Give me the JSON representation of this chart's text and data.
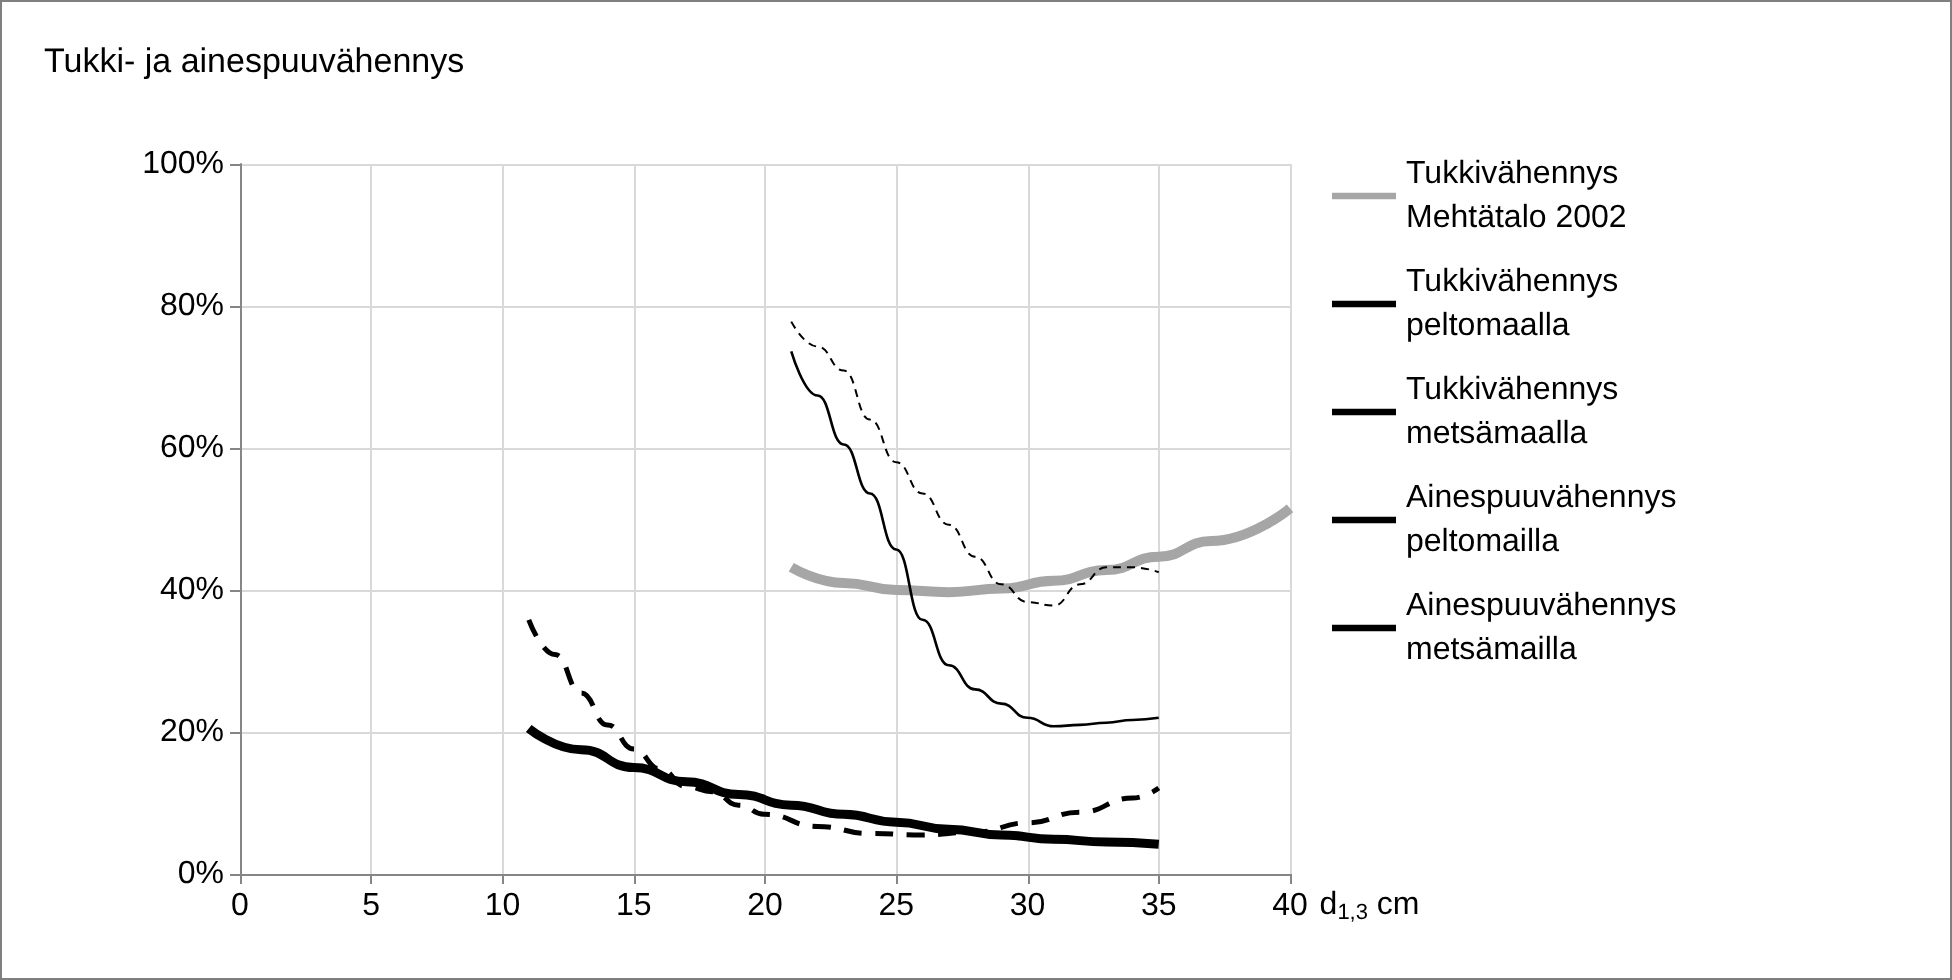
{
  "chart_data": {
    "type": "line",
    "title": "Tukki- ja ainespuuvähennys",
    "xlabel": "d$_{1,3}$ cm",
    "xlim": [
      0,
      40
    ],
    "xticks": [
      0,
      5,
      10,
      15,
      20,
      25,
      30,
      35,
      40
    ],
    "ylim": [
      0,
      100
    ],
    "yticks": [
      {
        "value": 0,
        "label": "0%"
      },
      {
        "value": 20,
        "label": "20%"
      },
      {
        "value": 40,
        "label": "40%"
      },
      {
        "value": 60,
        "label": "60%"
      },
      {
        "value": 80,
        "label": "80%"
      },
      {
        "value": 100,
        "label": "100%"
      }
    ],
    "grid": true,
    "legend": "right",
    "marker": "none",
    "series": [
      {
        "name": "Tukkivähennys Mehtätalo 2002",
        "color": "#a6a6a6",
        "line_style": "solid",
        "x": [
          21,
          23,
          25,
          27,
          29,
          31,
          33,
          35,
          37,
          40
        ],
        "values": [
          43.2,
          41.0,
          40.0,
          39.7,
          40.2,
          41.3,
          42.8,
          44.7,
          46.9,
          51.5
        ]
      },
      {
        "name": "Tukkivähennys peltomaalla",
        "color": "#000000",
        "line_style": "dashed",
        "x": [
          21,
          22,
          23,
          24,
          25,
          26,
          27,
          28,
          29,
          30,
          31,
          32,
          33,
          34,
          35
        ],
        "values": [
          77.8,
          74.3,
          70.9,
          64,
          58,
          53.6,
          49.2,
          44.7,
          40.8,
          38.3,
          37.8,
          40.8,
          43.2,
          43.2,
          42.5
        ]
      },
      {
        "name": "Tukkivähennys metsämaalla",
        "color": "#000000",
        "line_style": "solid",
        "x": [
          21,
          22,
          23,
          24,
          25,
          26,
          27,
          28,
          29,
          30,
          31,
          32,
          33,
          34,
          35
        ],
        "values": [
          73.6,
          67.4,
          60.5,
          53.6,
          45.7,
          35.8,
          29.4,
          26,
          24,
          22,
          20.8,
          21,
          21.3,
          21.7,
          22
        ]
      },
      {
        "name": "Ainespuuvähennys peltomailla",
        "color": "#000000",
        "line_style": "dashed",
        "x": [
          11,
          12,
          13,
          14,
          15,
          16,
          17,
          18,
          19,
          20,
          22,
          24,
          26,
          28,
          30,
          32,
          34,
          35
        ],
        "values": [
          35.8,
          30.9,
          25.5,
          21,
          17.6,
          14.8,
          12.3,
          11.6,
          9.7,
          8.4,
          6.7,
          5.7,
          5.5,
          5.9,
          7.2,
          8.7,
          10.7,
          12.1
        ]
      },
      {
        "name": "Ainespuuvähennys metsämailla",
        "color": "#000000",
        "line_style": "solid",
        "x": [
          11,
          13,
          15,
          17,
          19,
          21,
          23,
          25,
          27,
          29,
          31,
          33,
          35
        ],
        "values": [
          20.5,
          17.5,
          15,
          13,
          11.2,
          9.7,
          8.4,
          7.3,
          6.3,
          5.5,
          4.9,
          4.5,
          4.2
        ]
      }
    ]
  }
}
